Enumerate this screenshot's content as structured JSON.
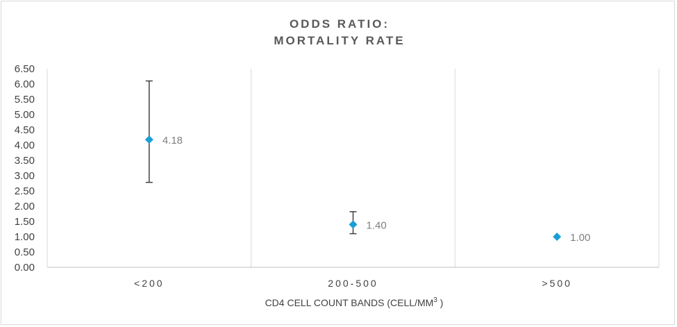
{
  "chart_data": {
    "type": "scatter",
    "title_lines": [
      "ODDS RATIO:",
      "MORTALITY RATE"
    ],
    "xlabel": {
      "main": "CD4 CELL COUNT BANDS",
      "unit_prefix": "(CELL/MM",
      "unit_sup": "3",
      "unit_suffix": ")"
    },
    "ylabel": "",
    "categories": [
      "<200",
      "200-500",
      ">500"
    ],
    "series": [
      {
        "values": [
          4.18,
          1.4,
          1.0
        ],
        "labels": [
          "4.18",
          "1.40",
          "1.00"
        ],
        "error_low": [
          2.78,
          1.1,
          null
        ],
        "error_high": [
          6.1,
          1.82,
          null
        ]
      }
    ],
    "ylim": [
      0,
      6.5
    ],
    "yticks": [
      "0.00",
      "0.50",
      "1.00",
      "1.50",
      "2.00",
      "2.50",
      "3.00",
      "3.50",
      "4.00",
      "4.50",
      "5.00",
      "5.50",
      "6.00",
      "6.50"
    ],
    "grid": "vertical-category-separators",
    "legend": "none",
    "colors": {
      "marker": "#1b9ed6",
      "error_bar": "#404040",
      "grid": "#d9d9d9",
      "axis": "#bfbfbf"
    }
  }
}
